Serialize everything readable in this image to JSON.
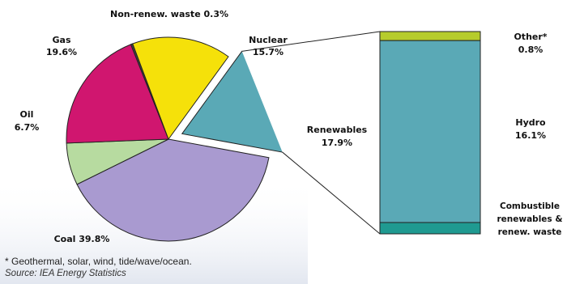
{
  "chart_data": {
    "type": "pie",
    "slices": [
      {
        "label": "Coal",
        "value": 39.8,
        "display": "39.8%",
        "color": "#a99ad0"
      },
      {
        "label": "Oil",
        "value": 6.7,
        "display": "6.7%",
        "color": "#b7dba0"
      },
      {
        "label": "Gas",
        "value": 19.6,
        "display": "19.6%",
        "color": "#d0166f"
      },
      {
        "label": "Non-renew. waste",
        "value": 0.3,
        "display": "0.3%",
        "color": "#444444"
      },
      {
        "label": "Nuclear",
        "value": 15.7,
        "display": "15.7%",
        "color": "#f5e10a"
      },
      {
        "label": "Renewables",
        "value": 17.9,
        "display": "17.9%",
        "color": "#5aa9b6"
      }
    ],
    "breakdown": {
      "of": "Renewables",
      "items": [
        {
          "label": "Other*",
          "value": 0.8,
          "display": "0.8%",
          "color": "#b6cc2c"
        },
        {
          "label": "Hydro",
          "value": 16.1,
          "display": "16.1%",
          "color": "#5aa9b6"
        },
        {
          "label": "Combustible renewables & renew. waste",
          "value": 1.0,
          "display": "",
          "color": "#1f9a91"
        }
      ]
    }
  },
  "labels": {
    "non_renew": "Non-renew. waste 0.3%",
    "gas_name": "Gas",
    "gas_value": "19.6%",
    "nuclear_name": "Nuclear",
    "nuclear_value": "15.7%",
    "oil_name": "Oil",
    "oil_value": "6.7%",
    "coal": "Coal 39.8%",
    "renew_name": "Renewables",
    "renew_value": "17.9%",
    "other_name": "Other*",
    "other_value": "0.8%",
    "hydro_name": "Hydro",
    "hydro_value": "16.1%",
    "combust_line1": "Combustible",
    "combust_line2": "renewables &",
    "combust_line3": "renew. waste"
  },
  "footnote": "* Geothermal, solar, wind, tide/wave/ocean.",
  "source": "Source: IEA Energy Statistics"
}
